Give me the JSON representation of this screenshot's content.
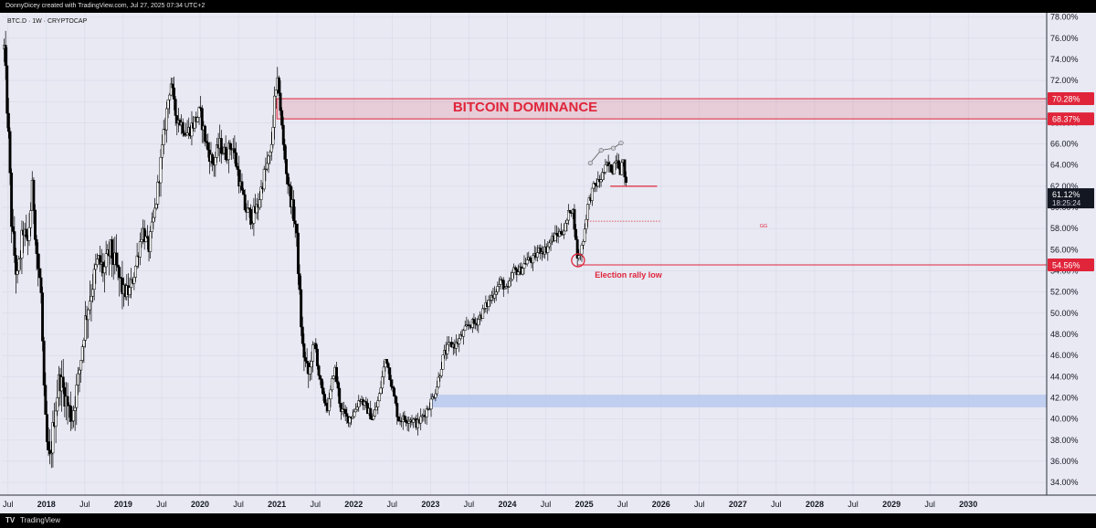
{
  "header": {
    "credit": "DonnyDicey created with TradingView.com, Jul 27, 2025 07:34 UTC+2"
  },
  "footer": {
    "logo": "TV",
    "brand": "TradingView"
  },
  "chart_data": {
    "type": "candlestick",
    "symbol_label": "BTC.D · 1W · CRYPTOCAP",
    "title": "BITCOIN DOMINANCE",
    "ylim": [
      32.8,
      78.4
    ],
    "xlim": [
      2017.42,
      2031.02
    ],
    "y_ticks": [
      "34.00%",
      "36.00%",
      "38.00%",
      "40.00%",
      "42.00%",
      "44.00%",
      "46.00%",
      "48.00%",
      "50.00%",
      "52.00%",
      "54.00%",
      "56.00%",
      "58.00%",
      "60.00%",
      "62.00%",
      "64.00%",
      "66.00%",
      "68.00%",
      "70.00%",
      "72.00%",
      "74.00%",
      "76.00%",
      "78.00%"
    ],
    "y_tick_values": [
      34,
      36,
      38,
      40,
      42,
      44,
      46,
      48,
      50,
      52,
      54,
      56,
      58,
      60,
      62,
      64,
      66,
      68,
      70,
      72,
      74,
      76,
      78
    ],
    "x_ticks": [
      {
        "label": "Jul",
        "t": 2017.5
      },
      {
        "label": "2018",
        "t": 2018.0
      },
      {
        "label": "Jul",
        "t": 2018.5
      },
      {
        "label": "2019",
        "t": 2019.0
      },
      {
        "label": "Jul",
        "t": 2019.5
      },
      {
        "label": "2020",
        "t": 2020.0
      },
      {
        "label": "Jul",
        "t": 2020.5
      },
      {
        "label": "2021",
        "t": 2021.0
      },
      {
        "label": "Jul",
        "t": 2021.5
      },
      {
        "label": "2022",
        "t": 2022.0
      },
      {
        "label": "Jul",
        "t": 2022.5
      },
      {
        "label": "2023",
        "t": 2023.0
      },
      {
        "label": "Jul",
        "t": 2023.5
      },
      {
        "label": "2024",
        "t": 2024.0
      },
      {
        "label": "Jul",
        "t": 2024.5
      },
      {
        "label": "2025",
        "t": 2025.0
      },
      {
        "label": "Jul",
        "t": 2025.5
      },
      {
        "label": "2026",
        "t": 2026.0
      },
      {
        "label": "Jul",
        "t": 2026.5
      },
      {
        "label": "2027",
        "t": 2027.0
      },
      {
        "label": "Jul",
        "t": 2027.5
      },
      {
        "label": "2028",
        "t": 2028.0
      },
      {
        "label": "Jul",
        "t": 2028.5
      },
      {
        "label": "2029",
        "t": 2029.0
      },
      {
        "label": "Jul",
        "t": 2029.5
      },
      {
        "label": "2030",
        "t": 2030.0
      }
    ],
    "price_path": [
      [
        2017.45,
        75
      ],
      [
        2017.5,
        68
      ],
      [
        2017.55,
        58
      ],
      [
        2017.62,
        53
      ],
      [
        2017.7,
        58
      ],
      [
        2017.75,
        56
      ],
      [
        2017.82,
        62
      ],
      [
        2017.88,
        55
      ],
      [
        2017.93,
        52
      ],
      [
        2017.97,
        42
      ],
      [
        2018.0,
        38
      ],
      [
        2018.04,
        35.6
      ],
      [
        2018.1,
        40
      ],
      [
        2018.17,
        44
      ],
      [
        2018.25,
        42
      ],
      [
        2018.33,
        40
      ],
      [
        2018.42,
        44
      ],
      [
        2018.5,
        49
      ],
      [
        2018.58,
        52
      ],
      [
        2018.67,
        55
      ],
      [
        2018.75,
        54
      ],
      [
        2018.83,
        56
      ],
      [
        2018.92,
        54
      ],
      [
        2019.0,
        52
      ],
      [
        2019.08,
        52
      ],
      [
        2019.15,
        54
      ],
      [
        2019.25,
        58
      ],
      [
        2019.33,
        56
      ],
      [
        2019.42,
        60
      ],
      [
        2019.5,
        65
      ],
      [
        2019.58,
        70
      ],
      [
        2019.62,
        72
      ],
      [
        2019.67,
        69
      ],
      [
        2019.75,
        68
      ],
      [
        2019.83,
        67
      ],
      [
        2019.92,
        68
      ],
      [
        2020.0,
        69
      ],
      [
        2020.08,
        66
      ],
      [
        2020.17,
        64
      ],
      [
        2020.25,
        66
      ],
      [
        2020.33,
        65
      ],
      [
        2020.42,
        66
      ],
      [
        2020.5,
        63
      ],
      [
        2020.58,
        60
      ],
      [
        2020.67,
        59
      ],
      [
        2020.75,
        60
      ],
      [
        2020.83,
        63
      ],
      [
        2020.92,
        65
      ],
      [
        2020.97,
        70
      ],
      [
        2021.02,
        72
      ],
      [
        2021.08,
        66
      ],
      [
        2021.15,
        62
      ],
      [
        2021.25,
        58
      ],
      [
        2021.33,
        47
      ],
      [
        2021.38,
        45
      ],
      [
        2021.42,
        44
      ],
      [
        2021.45,
        46
      ],
      [
        2021.5,
        47
      ],
      [
        2021.55,
        44
      ],
      [
        2021.6,
        42
      ],
      [
        2021.67,
        41
      ],
      [
        2021.75,
        45
      ],
      [
        2021.83,
        41
      ],
      [
        2021.92,
        40
      ],
      [
        2022.0,
        40.5
      ],
      [
        2022.08,
        42
      ],
      [
        2022.17,
        41
      ],
      [
        2022.25,
        40
      ],
      [
        2022.33,
        42
      ],
      [
        2022.42,
        46
      ],
      [
        2022.5,
        43
      ],
      [
        2022.58,
        40
      ],
      [
        2022.67,
        40
      ],
      [
        2022.75,
        40
      ],
      [
        2022.83,
        39.5
      ],
      [
        2022.92,
        40.5
      ],
      [
        2023.0,
        41.5
      ],
      [
        2023.08,
        43
      ],
      [
        2023.17,
        46
      ],
      [
        2023.25,
        47
      ],
      [
        2023.33,
        47
      ],
      [
        2023.42,
        48
      ],
      [
        2023.5,
        49
      ],
      [
        2023.58,
        49
      ],
      [
        2023.67,
        50
      ],
      [
        2023.75,
        51
      ],
      [
        2023.83,
        52
      ],
      [
        2023.92,
        53
      ],
      [
        2024.0,
        52
      ],
      [
        2024.08,
        54
      ],
      [
        2024.17,
        54
      ],
      [
        2024.25,
        55
      ],
      [
        2024.33,
        55
      ],
      [
        2024.42,
        56
      ],
      [
        2024.5,
        56
      ],
      [
        2024.58,
        57
      ],
      [
        2024.67,
        57.5
      ],
      [
        2024.75,
        58
      ],
      [
        2024.82,
        60
      ],
      [
        2024.86,
        59.5
      ],
      [
        2024.9,
        56
      ],
      [
        2024.92,
        55
      ],
      [
        2024.96,
        56
      ],
      [
        2025.0,
        57.5
      ],
      [
        2025.04,
        60
      ],
      [
        2025.08,
        61
      ],
      [
        2025.13,
        62
      ],
      [
        2025.2,
        62.5
      ],
      [
        2025.3,
        64
      ],
      [
        2025.37,
        63.5
      ],
      [
        2025.42,
        65
      ],
      [
        2025.47,
        63.5
      ],
      [
        2025.5,
        64.5
      ],
      [
        2025.53,
        63
      ],
      [
        2025.56,
        61.2
      ]
    ],
    "resistance_zone": {
      "y_low": 68.37,
      "y_high": 70.28,
      "t_start": 2021.0,
      "label_high": "70.28%",
      "label_low": "68.37%",
      "color": "#e0253a"
    },
    "support_zone": {
      "y_low": 41.1,
      "y_high": 42.3,
      "t_start": 2023.0,
      "color": "#b8c9ee"
    },
    "support_line": {
      "y": 54.56,
      "t_start": 2024.92,
      "label": "54.56%"
    },
    "level_line": {
      "y": 62.0,
      "t_start": 2025.34,
      "t_end": 2025.95
    },
    "dotted_line": {
      "y": 58.7,
      "t_start": 2025.04,
      "t_end": 2026.0
    },
    "gg_label": "GG",
    "election_label": "Election rally low",
    "election_point": {
      "t": 2024.92,
      "y": 55.0
    },
    "arc_points": [
      [
        2025.08,
        64.2
      ],
      [
        2025.22,
        65.4
      ],
      [
        2025.38,
        65.6
      ],
      [
        2025.48,
        66.1
      ]
    ],
    "current_price": {
      "label": "61.12%",
      "countdown": "18:25:24",
      "y": 61.12
    },
    "colors": {
      "background": "#e8e9f3",
      "candle": "#000000",
      "accent": "#e0253a",
      "grid": "#d7d9e6"
    }
  }
}
